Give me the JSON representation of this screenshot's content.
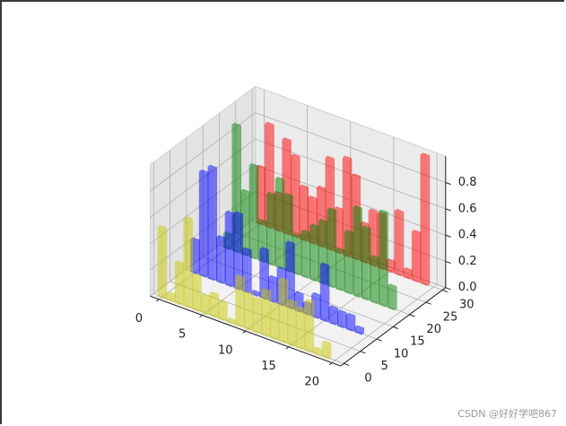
{
  "chart_data": {
    "type": "bar",
    "projection": "3d",
    "title": "",
    "xlabel": "",
    "ylabel": "",
    "zlabel": "",
    "x_ticks": [
      "0",
      "5",
      "10",
      "15",
      "20"
    ],
    "y_ticks": [
      "0",
      "5",
      "10",
      "15",
      "20",
      "25",
      "30"
    ],
    "z_ticks": [
      "0.0",
      "0.2",
      "0.4",
      "0.6",
      "0.8"
    ],
    "xlim": [
      -1,
      21
    ],
    "ylim": [
      -1,
      31
    ],
    "zlim": [
      0,
      1
    ],
    "grid": true,
    "alpha": 0.5,
    "categories": [
      0,
      1,
      2,
      3,
      4,
      5,
      6,
      7,
      8,
      9,
      10,
      11,
      12,
      13,
      14,
      15,
      16,
      17,
      18,
      19
    ],
    "series": [
      {
        "color": "#ff0000",
        "y": 30,
        "values": [
          0.43,
          0.78,
          0.28,
          0.71,
          0.61,
          0.4,
          0.34,
          0.44,
          0.69,
          0.33,
          0.74,
          0.63,
          0.29,
          0.41,
          0.41,
          0.08,
          0.48,
          0.06,
          0.37,
          0.98
        ]
      },
      {
        "color": "#008000",
        "y": 20,
        "values": [
          0.11,
          0.96,
          0.48,
          0.7,
          0.3,
          0.53,
          0.67,
          0.57,
          0.29,
          0.34,
          0.41,
          0.47,
          0.58,
          0.3,
          0.46,
          0.67,
          0.54,
          0.34,
          0.71,
          0.17
        ]
      },
      {
        "color": "#0000ff",
        "y": 10,
        "values": [
          0.25,
          0.79,
          0.85,
          0.34,
          0.55,
          0.57,
          0.32,
          0.02,
          0.37,
          0.18,
          0.27,
          0.49,
          0.13,
          0.08,
          0.17,
          0.42,
          0.12,
          0.11,
          0.11,
          0.04
        ]
      },
      {
        "color": "#c8c800",
        "y": 0,
        "values": [
          0.53,
          0.05,
          0.31,
          0.67,
          0.26,
          0.13,
          0.17,
          0.13,
          0.02,
          0.37,
          0.27,
          0.25,
          0.34,
          0.26,
          0.47,
          0.33,
          0.3,
          0.38,
          0.04,
          0.11
        ]
      }
    ]
  },
  "watermark": "CSDN @好好学吧867"
}
